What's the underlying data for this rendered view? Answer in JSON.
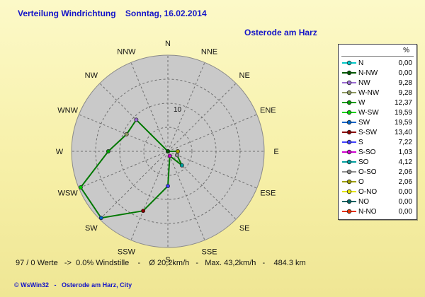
{
  "header": {
    "title": "Verteilung Windrichtung    Sonntag, 16.02.2014",
    "location": "Osterode am Harz"
  },
  "footer": {
    "stats": "97 / 0 Werte   ->  0.0% Windstille    -    Ø 20,2km/h   -   Max. 43,2km/h   -    484.3 km",
    "copyright": "© WsWin32   -   Osterode am Harz, City"
  },
  "legend": {
    "header": "%",
    "items": [
      {
        "label": "N",
        "value": "0,00",
        "color": "#00C8C8"
      },
      {
        "label": "N-NW",
        "value": "0,00",
        "color": "#005A00"
      },
      {
        "label": "NW",
        "value": "9,28",
        "color": "#9B6BD3"
      },
      {
        "label": "W-NW",
        "value": "9,28",
        "color": "#8F9B63"
      },
      {
        "label": "W",
        "value": "12,37",
        "color": "#00A000"
      },
      {
        "label": "W-SW",
        "value": "19,59",
        "color": "#00D200"
      },
      {
        "label": "SW",
        "value": "19,59",
        "color": "#0064C8"
      },
      {
        "label": "S-SW",
        "value": "13,40",
        "color": "#8B0000"
      },
      {
        "label": "S",
        "value": "7,22",
        "color": "#4040FF"
      },
      {
        "label": "S-SO",
        "value": "1,03",
        "color": "#D000D0"
      },
      {
        "label": "SO",
        "value": "4,12",
        "color": "#00A0A0"
      },
      {
        "label": "O-SO",
        "value": "2,06",
        "color": "#909090"
      },
      {
        "label": "O",
        "value": "2,06",
        "color": "#A0A000"
      },
      {
        "label": "O-NO",
        "value": "0,00",
        "color": "#E6E600"
      },
      {
        "label": "NO",
        "value": "0,00",
        "color": "#006464"
      },
      {
        "label": "N-NO",
        "value": "0,00",
        "color": "#E63200"
      }
    ]
  },
  "chart_data": {
    "type": "radar",
    "title": "Verteilung Windrichtung   Sonntag, 16.02.2014",
    "subtitle": "Osterode am Harz",
    "unit": "%",
    "compass_labels_clockwise": [
      "N",
      "NNE",
      "NE",
      "ENE",
      "E",
      "ESE",
      "SE",
      "SSE",
      "S",
      "SSW",
      "SW",
      "WSW",
      "W",
      "WNW",
      "NW",
      "NNW"
    ],
    "categories_clockwise": [
      "N",
      "N-NO",
      "NO",
      "O-NO",
      "O",
      "O-SO",
      "SO",
      "S-SO",
      "S",
      "S-SW",
      "SW",
      "W-SW",
      "W",
      "W-NW",
      "NW",
      "N-NW"
    ],
    "values": [
      0.0,
      0.0,
      0.0,
      0.0,
      2.06,
      2.06,
      4.12,
      1.03,
      7.22,
      13.4,
      19.59,
      19.59,
      12.37,
      9.28,
      9.28,
      0.0
    ],
    "r_max": 20,
    "rings": [
      5,
      10,
      15
    ],
    "labeled_ring": 10,
    "line_color": "#007800",
    "grid": "dashed",
    "legend_position": "right"
  }
}
